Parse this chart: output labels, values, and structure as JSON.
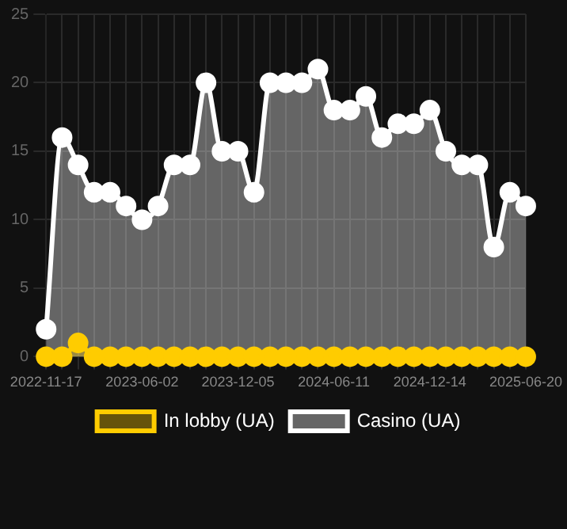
{
  "chart_data": {
    "type": "area",
    "categories": [
      "2022-11-17",
      null,
      null,
      null,
      null,
      null,
      "2023-06-02",
      null,
      null,
      null,
      null,
      null,
      "2023-12-05",
      null,
      null,
      null,
      null,
      null,
      "2024-06-11",
      null,
      null,
      null,
      null,
      null,
      "2024-12-14",
      null,
      null,
      null,
      null,
      null,
      "2025-06-20"
    ],
    "series": [
      {
        "name": "In lobby (UA)",
        "color": "#ffcc00",
        "values": [
          0,
          0,
          1,
          0,
          0,
          0,
          0,
          0,
          0,
          0,
          0,
          0,
          0,
          0,
          0,
          0,
          0,
          0,
          0,
          0,
          0,
          0,
          0,
          0,
          0,
          0,
          0,
          0,
          0,
          0,
          0
        ]
      },
      {
        "name": "Casino (UA)",
        "color": "#ffffff",
        "values": [
          2,
          16,
          14,
          12,
          12,
          11,
          10,
          11,
          14,
          14,
          20,
          15,
          15,
          12,
          20,
          20,
          20,
          21,
          18,
          18,
          19,
          16,
          17,
          17,
          18,
          15,
          14,
          14,
          8,
          12,
          11
        ]
      }
    ],
    "ylim": [
      0,
      25
    ],
    "yticks": [
      0,
      5,
      10,
      15,
      20,
      25
    ],
    "grid": true,
    "legend": "bottom",
    "marker": "circle"
  }
}
